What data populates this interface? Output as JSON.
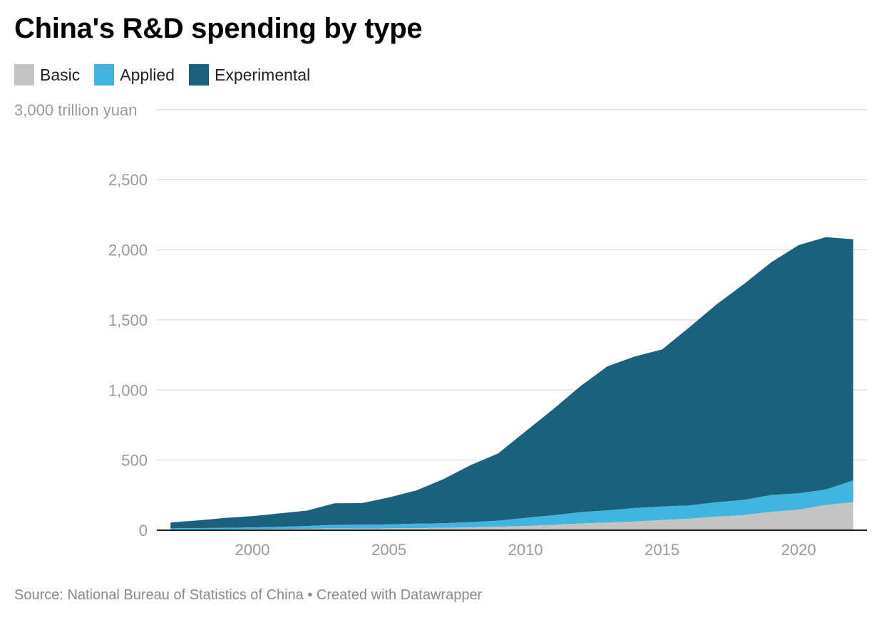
{
  "title": "China's R&D spending by type",
  "source": "Source: National Bureau of Statistics of China • Created with Datawrapper",
  "colors": {
    "basic": "#c4c4c4",
    "applied": "#40b5e0",
    "experimental": "#1b617b",
    "grid": "#e0e0e0",
    "axis_text": "#9a9a9a"
  },
  "legend": [
    {
      "label": "Basic",
      "color": "#c4c4c4"
    },
    {
      "label": "Applied",
      "color": "#40b5e0"
    },
    {
      "label": "Experimental",
      "color": "#1b617b"
    }
  ],
  "chart_data": {
    "type": "area",
    "stacked": true,
    "title": "China's R&D spending by type",
    "ylabel": "",
    "y_unit_label": "3,000 trillion yuan",
    "ylim": [
      0,
      3070
    ],
    "xlim": [
      1996.5,
      2022.5
    ],
    "yticks": [
      0,
      500,
      1000,
      1500,
      2000,
      2500,
      3000
    ],
    "ytick_labels": [
      "0",
      "500",
      "1,000",
      "1,500",
      "2,000",
      "2,500",
      "3,000 trillion yuan"
    ],
    "xticks": [
      2000,
      2005,
      2010,
      2015,
      2020
    ],
    "xtick_labels": [
      "2000",
      "2005",
      "2010",
      "2015",
      "2020"
    ],
    "x": [
      1997,
      1998,
      1999,
      2000,
      2001,
      2002,
      2003,
      2004,
      2005,
      2006,
      2007,
      2008,
      2009,
      2010,
      2011,
      2012,
      2013,
      2014,
      2015,
      2016,
      2017,
      2018,
      2019,
      2020,
      2021,
      2022
    ],
    "series": [
      {
        "name": "Basic",
        "values": [
          3,
          4,
          5,
          6,
          8,
          10,
          12,
          12,
          13,
          15,
          17,
          20,
          25,
          30,
          38,
          48,
          55,
          62,
          72,
          82,
          97,
          108,
          131,
          146,
          180,
          200
        ]
      },
      {
        "name": "Applied",
        "values": [
          10,
          11,
          12,
          14,
          16,
          20,
          26,
          27,
          28,
          32,
          33,
          38,
          43,
          58,
          68,
          80,
          86,
          96,
          97,
          95,
          102,
          108,
          120,
          117,
          110,
          155
        ]
      },
      {
        "name": "Experimental",
        "values": [
          42,
          55,
          71,
          80,
          96,
          110,
          154,
          154,
          193,
          236,
          315,
          407,
          480,
          617,
          755,
          897,
          1028,
          1081,
          1120,
          1270,
          1412,
          1540,
          1660,
          1770,
          1800,
          1720
        ]
      }
    ],
    "grid": true,
    "legend_position": "top-left"
  }
}
